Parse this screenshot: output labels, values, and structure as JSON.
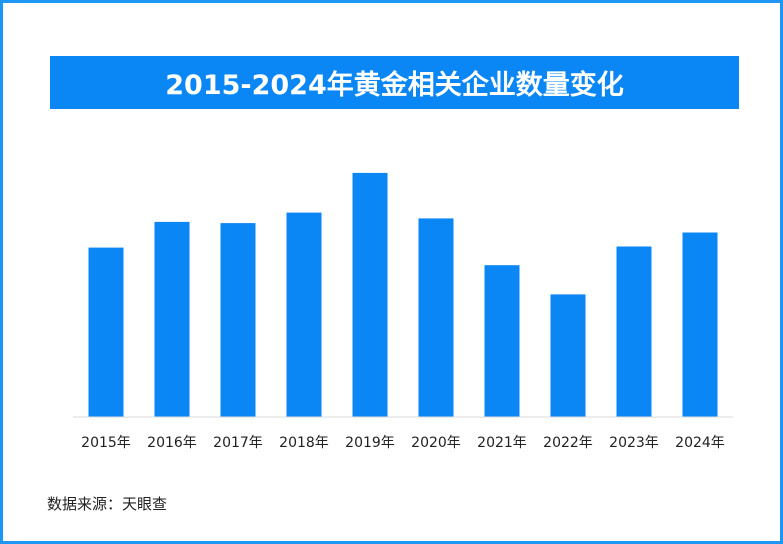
{
  "title": "2015-2024年黄金相关企业数量变化",
  "source": "数据来源：天眼查",
  "colors": {
    "frame": "#1e96f5",
    "title_bg": "#0a86f5",
    "bar": "#0a86f5",
    "axis": "#d9d9d9",
    "tick_text": "#222222"
  },
  "chart_data": {
    "type": "bar",
    "categories": [
      "2015年",
      "2016年",
      "2017年",
      "2018年",
      "2019年",
      "2020年",
      "2021年",
      "2022年",
      "2023年",
      "2024年"
    ],
    "series": [
      {
        "values": [
          145,
          167,
          166,
          175,
          209,
          170,
          130,
          105,
          146,
          158
        ]
      }
    ],
    "title": "2015-2024年黄金相关企业数量变化",
    "xlabel": "",
    "ylabel": "",
    "ylim": [
      0,
      250
    ],
    "grid": false,
    "legend": "none"
  }
}
